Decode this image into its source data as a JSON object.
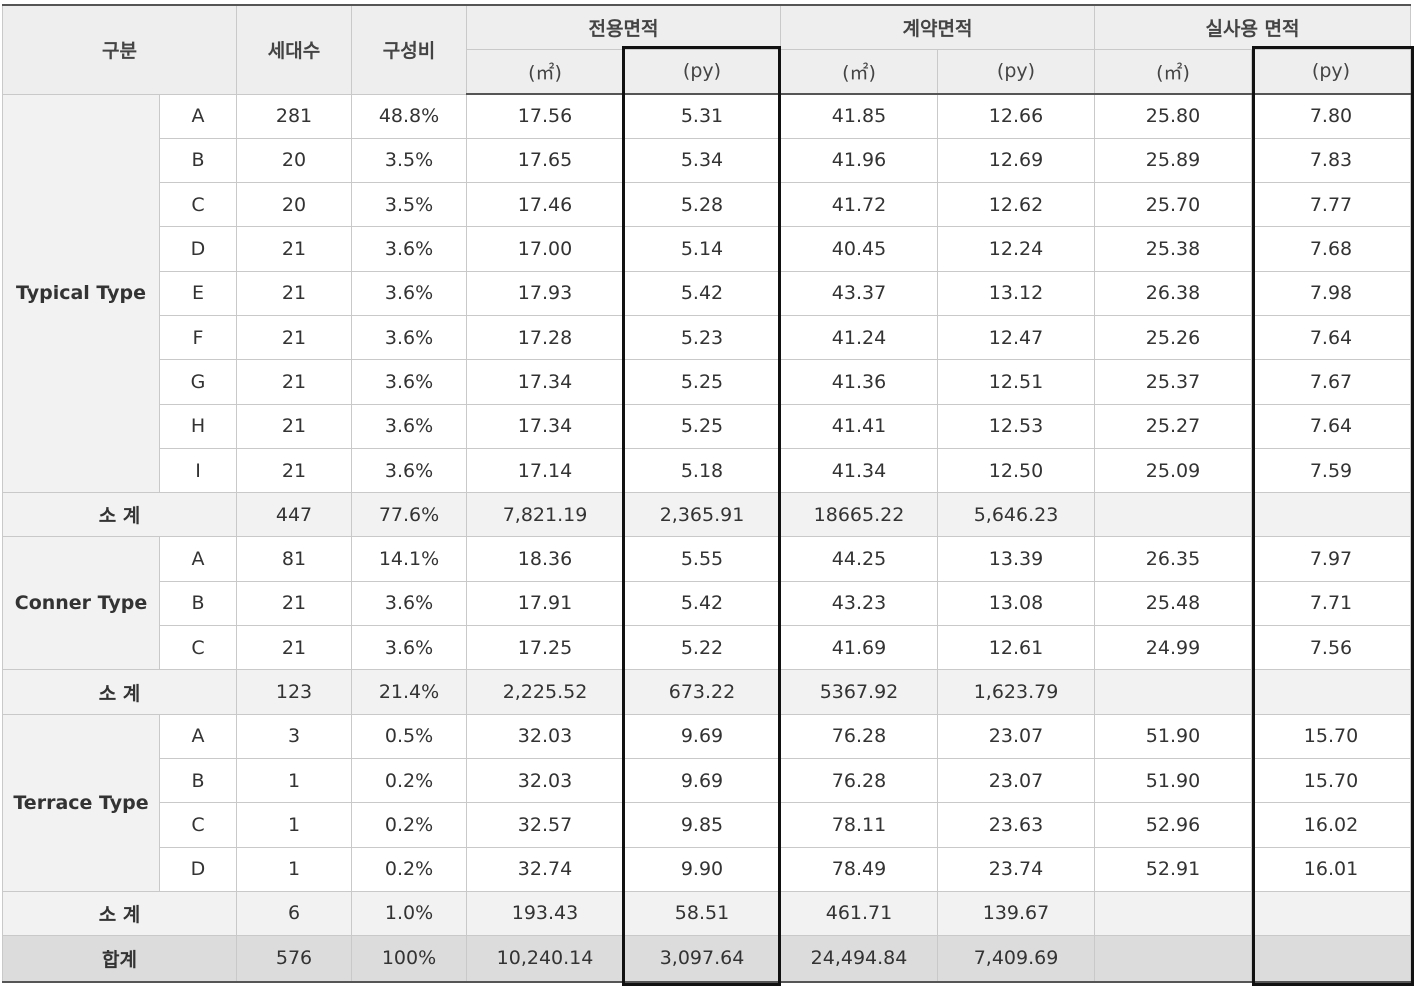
{
  "header": {
    "gubun": "구분",
    "households": "세대수",
    "ratio": "구성비",
    "exclusive_area": "전용면적",
    "contract_area": "계약면적",
    "actual_area": "실사용 면적",
    "unit_m2": "(㎡)",
    "unit_py": "(py)"
  },
  "groups": [
    {
      "name": "Typical Type",
      "rows": [
        [
          "A",
          "281",
          "48.8%",
          "17.56",
          "5.31",
          "41.85",
          "12.66",
          "25.80",
          "7.80"
        ],
        [
          "B",
          "20",
          "3.5%",
          "17.65",
          "5.34",
          "41.96",
          "12.69",
          "25.89",
          "7.83"
        ],
        [
          "C",
          "20",
          "3.5%",
          "17.46",
          "5.28",
          "41.72",
          "12.62",
          "25.70",
          "7.77"
        ],
        [
          "D",
          "21",
          "3.6%",
          "17.00",
          "5.14",
          "40.45",
          "12.24",
          "25.38",
          "7.68"
        ],
        [
          "E",
          "21",
          "3.6%",
          "17.93",
          "5.42",
          "43.37",
          "13.12",
          "26.38",
          "7.98"
        ],
        [
          "F",
          "21",
          "3.6%",
          "17.28",
          "5.23",
          "41.24",
          "12.47",
          "25.26",
          "7.64"
        ],
        [
          "G",
          "21",
          "3.6%",
          "17.34",
          "5.25",
          "41.36",
          "12.51",
          "25.37",
          "7.67"
        ],
        [
          "H",
          "21",
          "3.6%",
          "17.34",
          "5.25",
          "41.41",
          "12.53",
          "25.27",
          "7.64"
        ],
        [
          "I",
          "21",
          "3.6%",
          "17.14",
          "5.18",
          "41.34",
          "12.50",
          "25.09",
          "7.59"
        ]
      ],
      "subtotal": [
        "소 계",
        "447",
        "77.6%",
        "7,821.19",
        "2,365.91",
        "18665.22",
        "5,646.23",
        "",
        ""
      ]
    },
    {
      "name": "Conner Type",
      "rows": [
        [
          "A",
          "81",
          "14.1%",
          "18.36",
          "5.55",
          "44.25",
          "13.39",
          "26.35",
          "7.97"
        ],
        [
          "B",
          "21",
          "3.6%",
          "17.91",
          "5.42",
          "43.23",
          "13.08",
          "25.48",
          "7.71"
        ],
        [
          "C",
          "21",
          "3.6%",
          "17.25",
          "5.22",
          "41.69",
          "12.61",
          "24.99",
          "7.56"
        ]
      ],
      "subtotal": [
        "소 계",
        "123",
        "21.4%",
        "2,225.52",
        "673.22",
        "5367.92",
        "1,623.79",
        "",
        ""
      ]
    },
    {
      "name": "Terrace Type",
      "rows": [
        [
          "A",
          "3",
          "0.5%",
          "32.03",
          "9.69",
          "76.28",
          "23.07",
          "51.90",
          "15.70"
        ],
        [
          "B",
          "1",
          "0.2%",
          "32.03",
          "9.69",
          "76.28",
          "23.07",
          "51.90",
          "15.70"
        ],
        [
          "C",
          "1",
          "0.2%",
          "32.57",
          "9.85",
          "78.11",
          "23.63",
          "52.96",
          "16.02"
        ],
        [
          "D",
          "1",
          "0.2%",
          "32.74",
          "9.90",
          "78.49",
          "23.74",
          "52.91",
          "16.01"
        ]
      ],
      "subtotal": [
        "소 계",
        "6",
        "1.0%",
        "193.43",
        "58.51",
        "461.71",
        "139.67",
        "",
        ""
      ]
    }
  ],
  "total": [
    "합계",
    "576",
    "100%",
    "10,240.14",
    "3,097.64",
    "24,494.84",
    "7,409.69",
    "",
    ""
  ]
}
